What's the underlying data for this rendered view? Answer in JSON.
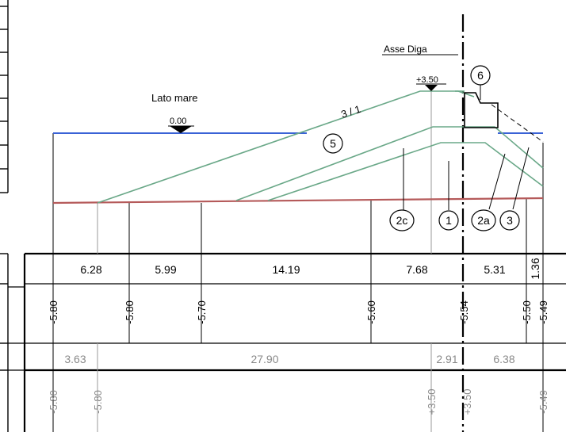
{
  "labels": {
    "asse_diga": "Asse Diga",
    "crest_level": "+3.50",
    "lato_mare": "Lato mare",
    "water_level": "0.00",
    "slope": "3 / 1"
  },
  "markers": [
    "1",
    "2a",
    "2c",
    "3",
    "5",
    "6"
  ],
  "distances_top": [
    "6.28",
    "5.99",
    "14.19",
    "7.68",
    "5.31",
    "1.36"
  ],
  "elevations_seabed": [
    "-5.80",
    "-5.80",
    "-5.70",
    "-5.60",
    "-5.54",
    "-5.50",
    "-5.49"
  ],
  "distances_bottom": [
    "3.63",
    "27.90",
    "2.91",
    "6.38"
  ],
  "elevations_project": [
    "-5.80",
    "-5.80",
    "+3.50",
    "+3.50",
    "-5.49"
  ],
  "colors": {
    "line": "#000000",
    "water": "#3a62d6",
    "seabed": "#b55a5a",
    "layers": "#6aa888",
    "grey_text": "#8a8a8a",
    "ref_line": "#999999"
  }
}
